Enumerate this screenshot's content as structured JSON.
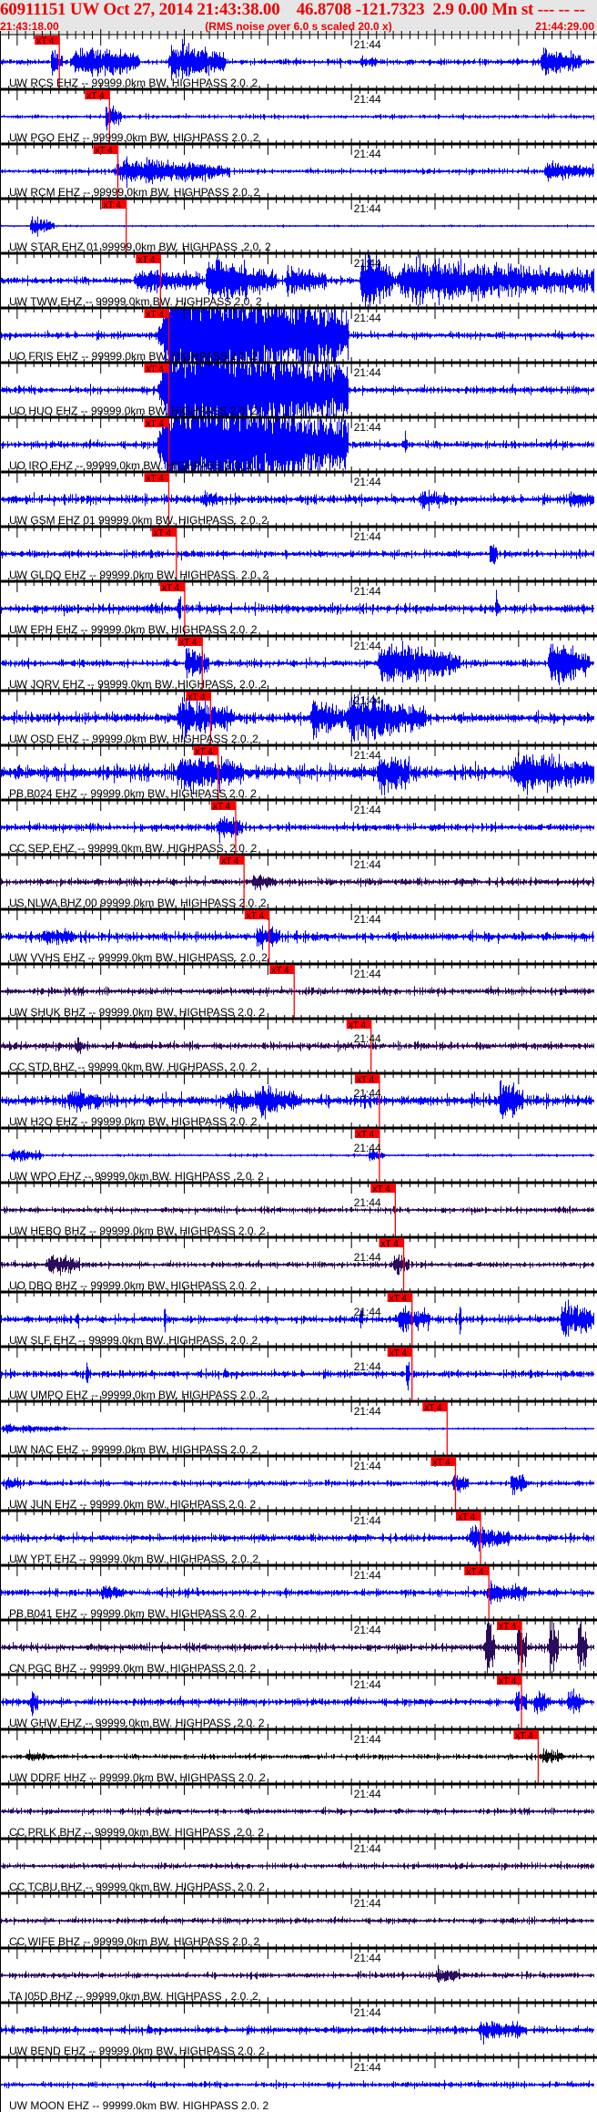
{
  "header": {
    "title": "60911151 UW Oct 27, 2014 21:43:38.00    46.8708 -121.7323  2.9 0.00 Mn st --- -- --   -1",
    "start_time": "21:43:18.00",
    "note": "(RMS noise over 6.0 s scaled 20.0 x)",
    "end_time": "21:44:29.00"
  },
  "colors": {
    "header_text": "#ee0000",
    "marker": "#ff0000",
    "ehz": "#0000ff",
    "bhz": "#2b0b5c",
    "hhz": "#101010"
  },
  "chart_data": {
    "type": "line",
    "title": "",
    "x_axis": {
      "start": "21:43:18.00",
      "end": "21:44:29.00",
      "tick_label": "21:44",
      "minor_tick_s": 1,
      "major_tick_s": 10
    },
    "marker_label": "xT 4",
    "amplitude_note": "relative amplitude, 1 = half trace height",
    "traces": [
      {
        "label": "UW RCS EHZ -- 99999.0km BW. HIGHPASS  2.0. 2",
        "color": "#0000ff",
        "pick": "21:43:25.1",
        "noise": 0.08,
        "events": [
          {
            "t": "21:43:24.0",
            "d": 1.5,
            "a": 0.6
          },
          {
            "t": "21:43:26.5",
            "d": 8,
            "a": 0.8
          },
          {
            "t": "21:43:38.0",
            "d": 7,
            "a": 0.9
          },
          {
            "t": "21:43:58.5",
            "d": 0.3,
            "a": 0.4
          },
          {
            "t": "21:44:01.0",
            "d": 2,
            "a": 0.2
          },
          {
            "t": "21:44:22.5",
            "d": 5,
            "a": 0.6
          }
        ]
      },
      {
        "label": "UW PGO EHZ -- 99999.0km BW. HIGHPASS  2.0. 2",
        "color": "#0000ff",
        "pick": "21:43:31.1",
        "noise": 0.06,
        "events": [
          {
            "t": "21:43:30.5",
            "d": 2,
            "a": 0.6
          }
        ]
      },
      {
        "label": "UW RCM EHZ -- 99999.0km BW. HIGHPASS  2.0. 2",
        "color": "#0000ff",
        "pick": "21:43:32.1",
        "noise": 0.07,
        "events": [
          {
            "t": "21:43:31.5",
            "d": 14,
            "a": 0.6
          },
          {
            "t": "21:44:23.0",
            "d": 6,
            "a": 0.4
          }
        ]
      },
      {
        "label": "UW STAR EHZ 01 99999.0km BW. HIGHPASS .2.0. 2",
        "color": "#0000ff",
        "pick": "21:43:33.1",
        "noise": 0.03,
        "events": [
          {
            "t": "21:43:21.5",
            "d": 3,
            "a": 0.5
          }
        ]
      },
      {
        "label": "UW TWW EHZ -- 99999.0km BW. HIGHPASS  2.0. 2",
        "color": "#0000ff",
        "pick": "21:43:37.2",
        "noise": 0.1,
        "events": [
          {
            "t": "21:43:34.0",
            "d": 8,
            "a": 0.5
          },
          {
            "t": "21:43:42.5",
            "d": 5,
            "a": 1.3
          },
          {
            "t": "21:43:47.0",
            "d": 4,
            "a": 0.7
          },
          {
            "t": "21:43:52.0",
            "d": 5,
            "a": 0.6
          },
          {
            "t": "21:44:01.0",
            "d": 4,
            "a": 1.5
          },
          {
            "t": "21:44:05.0",
            "d": 24,
            "a": 1.0
          }
        ]
      },
      {
        "label": "UO FRIS EHZ -- 99999.0km BW. HIGHPASS  2.0. 2",
        "color": "#0000ff",
        "pick": "21:43:38.2",
        "noise": 0.1,
        "events": [
          {
            "t": "21:43:36.7",
            "d": 23,
            "a": 3
          }
        ]
      },
      {
        "label": "UO HUO EHZ -- 99999.0km BW. HIGHPASS  2.0. 2",
        "color": "#0000ff",
        "pick": "21:43:38.2",
        "noise": 0.1,
        "events": [
          {
            "t": "21:43:36.7",
            "d": 23,
            "a": 3
          }
        ]
      },
      {
        "label": "UO IRO EHZ -- 99999.0km BW. HIGHPASS  2.0. 2",
        "color": "#0000ff",
        "pick": "21:43:38.2",
        "noise": 0.1,
        "events": [
          {
            "t": "21:43:36.7",
            "d": 23,
            "a": 3
          },
          {
            "t": "21:44:06.3",
            "d": 0.4,
            "a": 1.0
          }
        ]
      },
      {
        "label": "UW GSM EHZ 01 99999.0km BW. HIGHPASS. 2.0. 2",
        "color": "#0000ff",
        "pick": "21:43:38.2",
        "noise": 0.12,
        "events": [
          {
            "t": "21:43:42.0",
            "d": 2,
            "a": 0.3
          },
          {
            "t": "21:44:08.0",
            "d": 3,
            "a": 0.3
          },
          {
            "t": "21:44:26.0",
            "d": 3,
            "a": 0.3
          }
        ]
      },
      {
        "label": "UW GLDQ EHZ -- 99999.0km BW. HIGHPASS. 2.0. 2",
        "color": "#0000ff",
        "pick": "21:43:39.1",
        "noise": 0.1,
        "events": [
          {
            "t": "21:44:16.5",
            "d": 1,
            "a": 0.6
          }
        ]
      },
      {
        "label": "UW EPH EHZ -- 99999.0km BW. HIGHPASS  2.0. 2",
        "color": "#0000ff",
        "pick": "21:43:40.1",
        "noise": 0.12,
        "events": [
          {
            "t": "21:43:39.2",
            "d": 0.4,
            "a": 1.0
          },
          {
            "t": "21:44:17.2",
            "d": 0.4,
            "a": 1.1
          }
        ]
      },
      {
        "label": "UW JORV EHZ -- 99999.0km BW. HIGHPASS. 2.0. 2",
        "color": "#0000ff",
        "pick": "21:43:42.2",
        "noise": 0.1,
        "events": [
          {
            "t": "21:43:40.0",
            "d": 3,
            "a": 0.7
          },
          {
            "t": "21:44:03.0",
            "d": 10,
            "a": 1.0
          },
          {
            "t": "21:44:23.5",
            "d": 5,
            "a": 1.1
          }
        ]
      },
      {
        "label": "UW OSD EHZ -- 99999.0km BW. HIGHPASS  2.0. 2",
        "color": "#0000ff",
        "pick": "21:43:43.2",
        "noise": 0.13,
        "events": [
          {
            "t": "21:43:39.0",
            "d": 7,
            "a": 0.8
          },
          {
            "t": "21:43:55.0",
            "d": 4,
            "a": 0.9
          },
          {
            "t": "21:43:59.0",
            "d": 10,
            "a": 1.0
          }
        ]
      },
      {
        "label": "PB B024 EHZ -- 99999.0km BW. HIGHPASS  2.0. 2",
        "color": "#0000ff",
        "pick": "21:43:44.1",
        "noise": 0.2,
        "events": [
          {
            "t": "21:43:39.0",
            "d": 8,
            "a": 0.8
          },
          {
            "t": "21:44:03.0",
            "d": 4,
            "a": 0.9
          },
          {
            "t": "21:44:19.0",
            "d": 10,
            "a": 0.8
          }
        ]
      },
      {
        "label": "CC SEP EHZ -- 99999.0km BW. HIGHPASS. 2.0. 2",
        "color": "#0000ff",
        "pick": "21:43:46.2",
        "noise": 0.1,
        "events": [
          {
            "t": "21:43:44.0",
            "d": 3,
            "a": 0.6
          }
        ]
      },
      {
        "label": "US NLWA BHZ 00 99999.0km BW. HIGHPASS  2.0. 2",
        "color": "#2b0b5c",
        "pick": "21:43:47.2",
        "noise": 0.1,
        "events": [
          {
            "t": "21:43:48.0",
            "d": 3,
            "a": 0.3
          }
        ]
      },
      {
        "label": "UW VVHS EHZ -- 99999.0km BW. HIGHPASS. 2.0. 2",
        "color": "#0000ff",
        "pick": "21:43:50.2",
        "noise": 0.12,
        "events": [
          {
            "t": "21:43:23.0",
            "d": 4,
            "a": 0.3
          },
          {
            "t": "21:43:48.5",
            "d": 3,
            "a": 0.5
          }
        ]
      },
      {
        "label": "UW SHUK BHZ -- 99999.0km BW. HIGHPASS  2.0. 2",
        "color": "#2b0b5c",
        "pick": "21:43:53.2",
        "noise": 0.1,
        "events": []
      },
      {
        "label": "CC STD BHZ -- 99999.0km BW. HIGHPASS. 2.0. 2",
        "color": "#2b0b5c",
        "pick": "21:44:02.4",
        "noise": 0.1,
        "events": [
          {
            "t": "21:43:27.0",
            "d": 1,
            "a": 0.3
          }
        ]
      },
      {
        "label": "UW H2O EHZ -- 99999.0km BW. HIGHPASS  2.0. 2",
        "color": "#0000ff",
        "pick": "21:44:03.4",
        "noise": 0.15,
        "events": [
          {
            "t": "21:43:26.0",
            "d": 4,
            "a": 0.4
          },
          {
            "t": "21:43:45.0",
            "d": 6,
            "a": 0.4
          },
          {
            "t": "21:43:48.8",
            "d": 5,
            "a": 0.5
          },
          {
            "t": "21:44:17.6",
            "d": 3,
            "a": 1.0
          }
        ]
      },
      {
        "label": "UW WPO EHZ -- 99999.0km BW. HIGHPASS .2.0. 2",
        "color": "#0000ff",
        "pick": "21:44:03.4",
        "noise": 0.04,
        "events": [
          {
            "t": "21:43:19.0",
            "d": 4,
            "a": 0.3
          },
          {
            "t": "21:44:02.0",
            "d": 2,
            "a": 0.3
          }
        ]
      },
      {
        "label": "UW HEBO BHZ -- 99999.0km BW. HIGHPASS  2.0. 2",
        "color": "#2b0b5c",
        "pick": "21:44:05.3",
        "noise": 0.08,
        "events": []
      },
      {
        "label": "UO DBO BHZ -- 99999.0km BW. HIGHPASS  2.0. 2",
        "color": "#2b0b5c",
        "pick": "21:44:06.3",
        "noise": 0.08,
        "events": [
          {
            "t": "21:43:23.5",
            "d": 4,
            "a": 0.5
          },
          {
            "t": "21:44:05.0",
            "d": 2,
            "a": 0.5
          }
        ]
      },
      {
        "label": "UW SLF EHZ -- 99999.0km BW. HIGHPASS. 2.0. 2",
        "color": "#0000ff",
        "pick": "21:44:07.3",
        "noise": 0.1,
        "events": [
          {
            "t": "21:43:27.0",
            "d": 0.4,
            "a": 0.5
          },
          {
            "t": "21:43:37.5",
            "d": 0.4,
            "a": 0.9
          },
          {
            "t": "21:44:01.0",
            "d": 0.4,
            "a": 0.8
          },
          {
            "t": "21:44:05.5",
            "d": 4,
            "a": 0.6
          },
          {
            "t": "21:44:12.8",
            "d": 0.4,
            "a": 1.0
          },
          {
            "t": "21:44:25.0",
            "d": 4,
            "a": 0.9
          }
        ]
      },
      {
        "label": "UW UMPQ EHZ -- 99999.0km BW. HIGHPASS  2.0. 2",
        "color": "#0000ff",
        "pick": "21:44:07.3",
        "noise": 0.1,
        "events": [
          {
            "t": "21:43:28.2",
            "d": 0.3,
            "a": 1.0
          },
          {
            "t": "21:44:06.5",
            "d": 0.5,
            "a": 1.0
          }
        ]
      },
      {
        "label": "UW NAC EHZ -- 99999.0km BW. HIGHPASS  2.0. 2",
        "color": "#0000ff",
        "pick": "21:44:11.5",
        "noise": 0.03,
        "events": [
          {
            "t": "21:43:18.0",
            "d": 8,
            "a": 0.2
          }
        ]
      },
      {
        "label": "UW JUN EHZ -- 99999.0km BW. HIGHPASS  2.0. 2",
        "color": "#0000ff",
        "pick": "21:44:12.5",
        "noise": 0.08,
        "events": [
          {
            "t": "21:43:18.5",
            "d": 2,
            "a": 0.3
          },
          {
            "t": "21:44:12.0",
            "d": 2,
            "a": 0.4
          },
          {
            "t": "21:44:19.0",
            "d": 2,
            "a": 0.6
          }
        ]
      },
      {
        "label": "UW YPT EHZ -- 99999.0km BW. HIGHPASS. 2.0. 2",
        "color": "#0000ff",
        "pick": "21:44:15.5",
        "noise": 0.1,
        "events": [
          {
            "t": "21:44:14.0",
            "d": 5,
            "a": 0.5
          }
        ]
      },
      {
        "label": "PB B041 EHZ -- 99999.0km BW. HIGHPASS  2.0. 2",
        "color": "#0000ff",
        "pick": "21:44:16.5",
        "noise": 0.1,
        "events": [
          {
            "t": "21:43:30.0",
            "d": 3,
            "a": 0.3
          },
          {
            "t": "21:44:16.0",
            "d": 5,
            "a": 0.4
          }
        ]
      },
      {
        "label": "CN PGC BHZ -- 99999.0km BW. HIGHPASS  2.0. 2",
        "color": "#2b0b5c",
        "pick": "21:44:20.4",
        "noise": 0.1,
        "events": [
          {
            "t": "21:44:16.0",
            "d": 1.2,
            "a": 1.5
          },
          {
            "t": "21:44:19.8",
            "d": 1.2,
            "a": 1.5
          },
          {
            "t": "21:44:23.6",
            "d": 1.2,
            "a": 1.5
          },
          {
            "t": "21:44:27.0",
            "d": 1.2,
            "a": 1.5
          }
        ]
      },
      {
        "label": "UW GHW EHZ -- 99999.0km BW. HIGHPASS .2.0. 2",
        "color": "#0000ff",
        "pick": "21:44:20.4",
        "noise": 0.1,
        "events": [
          {
            "t": "21:43:21.5",
            "d": 1,
            "a": 0.7
          },
          {
            "t": "21:44:19.5",
            "d": 1.5,
            "a": 0.5
          },
          {
            "t": "21:44:21.8",
            "d": 2,
            "a": 0.5
          },
          {
            "t": "21:44:25.8",
            "d": 2,
            "a": 0.5
          }
        ]
      },
      {
        "label": "UW DDRF HHZ -- 99999.0km BW. HIGHPASS  2.0. 2",
        "color": "#101010",
        "pick": "21:44:22.4",
        "noise": 0.07,
        "events": [
          {
            "t": "21:43:21.0",
            "d": 3,
            "a": 0.15
          },
          {
            "t": "21:44:22.5",
            "d": 3,
            "a": 0.3
          }
        ]
      },
      {
        "label": "CC PRLK BHZ -- 99999.0km BW. HIGHPASS .2.0. 2",
        "color": "#2b0b5c",
        "pick": "",
        "noise": 0.08,
        "events": []
      },
      {
        "label": "CC TCBU BHZ -- 99999.0km BW. HIGHPASS. 2.0. 2",
        "color": "#2b0b5c",
        "pick": "",
        "noise": 0.08,
        "events": []
      },
      {
        "label": "CC WIFE BHZ -- 99999.0km BW. HIGHPASS  2.0. 2",
        "color": "#2b0b5c",
        "pick": "",
        "noise": 0.08,
        "events": []
      },
      {
        "label": "TA I05D BHZ -- 99999.0km BW. HIGHPASS . 2.0. 2",
        "color": "#2b0b5c",
        "pick": "",
        "noise": 0.08,
        "events": [
          {
            "t": "21:44:10.0",
            "d": 3,
            "a": 0.3
          }
        ]
      },
      {
        "label": "UW BEND EHZ -- 99999.0km BW. HIGHPASS  2.0. 2",
        "color": "#0000ff",
        "pick": "",
        "noise": 0.1,
        "events": [
          {
            "t": "21:44:15.0",
            "d": 6,
            "a": 0.35
          }
        ]
      },
      {
        "label": "UW MOON EHZ -- 99999.0km BW. HIGHPASS  2.0. 2",
        "color": "#0000ff",
        "pick": "",
        "noise": 0.08,
        "events": []
      }
    ]
  }
}
